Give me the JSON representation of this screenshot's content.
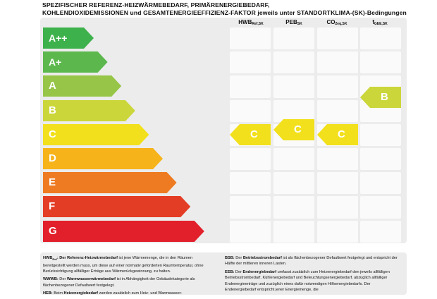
{
  "header": {
    "line1": "SPEZIFISCHER REFERENZ-HEIZWÄRMEBEDARF, PRIMÄRENERGIEBEDARF,",
    "line2": "KOHLENDIOXIDEMISSIONEN und GESAMTENERGIEEFFIZIENZ-FAKTOR jeweils unter STANDORTKLIMA-(SK)-Bedingungen"
  },
  "columns": [
    {
      "main": "HWB",
      "sub": "Ref,SK"
    },
    {
      "main": "PEB",
      "sub": "SK"
    },
    {
      "main": "CO",
      "sub": "2eq,SK"
    },
    {
      "main": "f",
      "sub": "GEE,SK"
    }
  ],
  "scale": [
    {
      "label": "A++",
      "color": "#3db14b"
    },
    {
      "label": "A+",
      "color": "#5cb84d"
    },
    {
      "label": "A",
      "color": "#97c548"
    },
    {
      "label": "B",
      "color": "#cbd63a"
    },
    {
      "label": "C",
      "color": "#f2e01c"
    },
    {
      "label": "D",
      "color": "#f6b31a"
    },
    {
      "label": "E",
      "color": "#ee7b22"
    },
    {
      "label": "F",
      "color": "#e43d25"
    },
    {
      "label": "G",
      "color": "#e2202b"
    }
  ],
  "ratings": [
    {
      "column": "HWB",
      "label": "C",
      "color": "#f2e01c"
    },
    {
      "column": "PEB",
      "label": "C",
      "color": "#f2e01c"
    },
    {
      "column": "CO2",
      "label": "C",
      "color": "#f2e01c"
    },
    {
      "column": "fGEE",
      "label": "B",
      "color": "#cbd63a"
    }
  ],
  "legend": {
    "hwb_abbr": "HWB",
    "hwb_abbr_sub": "Ref",
    "hwb_term": "Referenz-Heizwärmebedarf",
    "hwb_text": "ist jene Wärmemenge, die in den Räumen bereitgestellt werden muss, um diese auf einer normativ geforderten Raumtemperatur, ohne Berücksichtigung allfälliger Erträge aus Wärmerückgewinnung, zu halten.",
    "wwwb_abbr": "WWWB:",
    "wwwb_term": "Warmwasserwärmebedarf",
    "wwwb_text": "ist in Abhängigkeit der Gebäudekategorie als flächenbezogener Defaultwert festgelegt.",
    "heb_abbr": "HEB:",
    "heb_term": "Heizenergiebedarf",
    "heb_text": "werden zusätzlich zum Heiz- und Warmwasser-",
    "bsb_abbr": "BSB:",
    "bsb_term": "Betriebsstrombedarf",
    "bsb_text": "ist als flächenbezogener Defaultwert festgelegt und entspricht der Hälfte der mittleren inneren Lasten.",
    "eeb_abbr": "EEB:",
    "eeb_term": "Endenergiebedarf",
    "eeb_text": "umfasst zusätzlich zum Heizenergiebedarf den jeweils allfälligen Betriebsstrombedarf, Kühlenergiebedarf und Beleuchtungsenergiebedarf, abzüglich allfälliger Endenergieerträge und zuzüglich eines dafür notwendigen Hilfsenergiebedarfs. Der Endenergiebedarf entspricht jener Energiemenge, die"
  }
}
